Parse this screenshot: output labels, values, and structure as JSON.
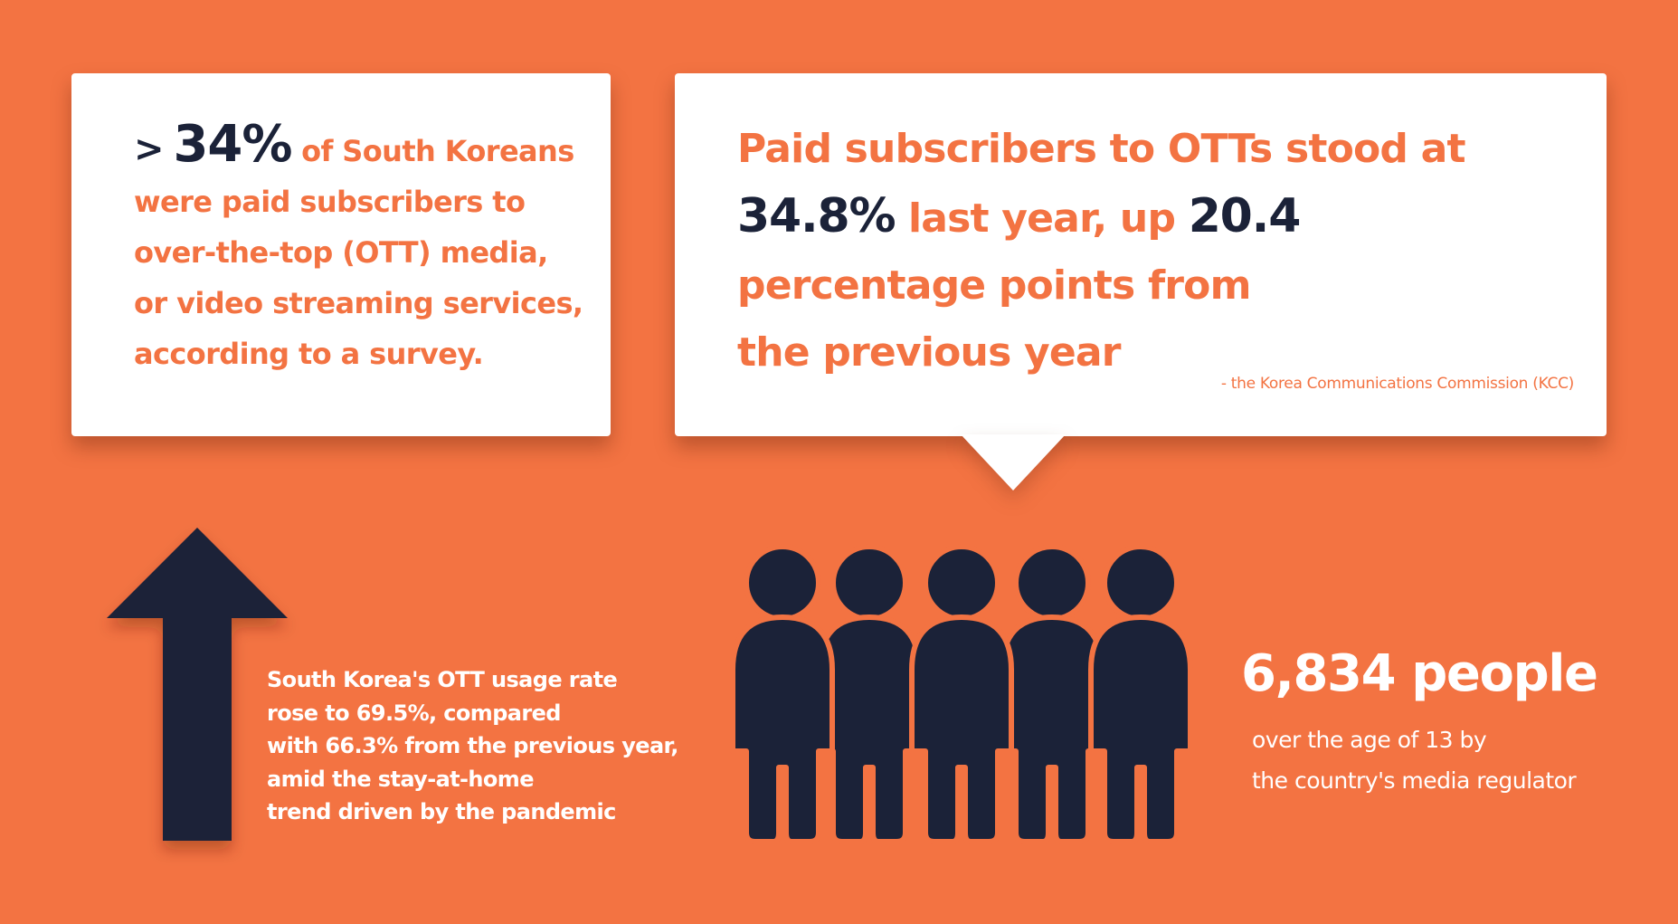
{
  "left_card": {
    "prefix": ">",
    "stat": "34%",
    "first_line_rest": "of South Koreans",
    "lines": [
      "were paid subscribers to",
      "over-the-top (OTT) media,",
      "or video streaming services,",
      "according to a survey."
    ]
  },
  "right_card": {
    "line1": "Paid subscribers to OTTs stood at",
    "line2_stat": "34.8%",
    "line2_mid": "last year, up",
    "line2_stat2": "20.4",
    "line3": "percentage points from",
    "line4": "the previous year",
    "source": "- the Korea Communications Commission (KCC)"
  },
  "usage": {
    "lines": [
      "South Korea's OTT usage rate",
      "rose to 69.5%, compared",
      "with 66.3% from the previous year,",
      "amid the stay-at-home",
      "trend driven by the pandemic"
    ]
  },
  "survey": {
    "count": "6,834 people",
    "lines": [
      "over the age of 13 by",
      "the country's media regulator"
    ]
  },
  "colors": {
    "background": "#F37342",
    "accent": "#F37342",
    "dark": "#1B2238",
    "card": "#FFFFFF"
  },
  "icons": {
    "arrow": "up-arrow-icon",
    "people": "group-of-people-icon"
  }
}
